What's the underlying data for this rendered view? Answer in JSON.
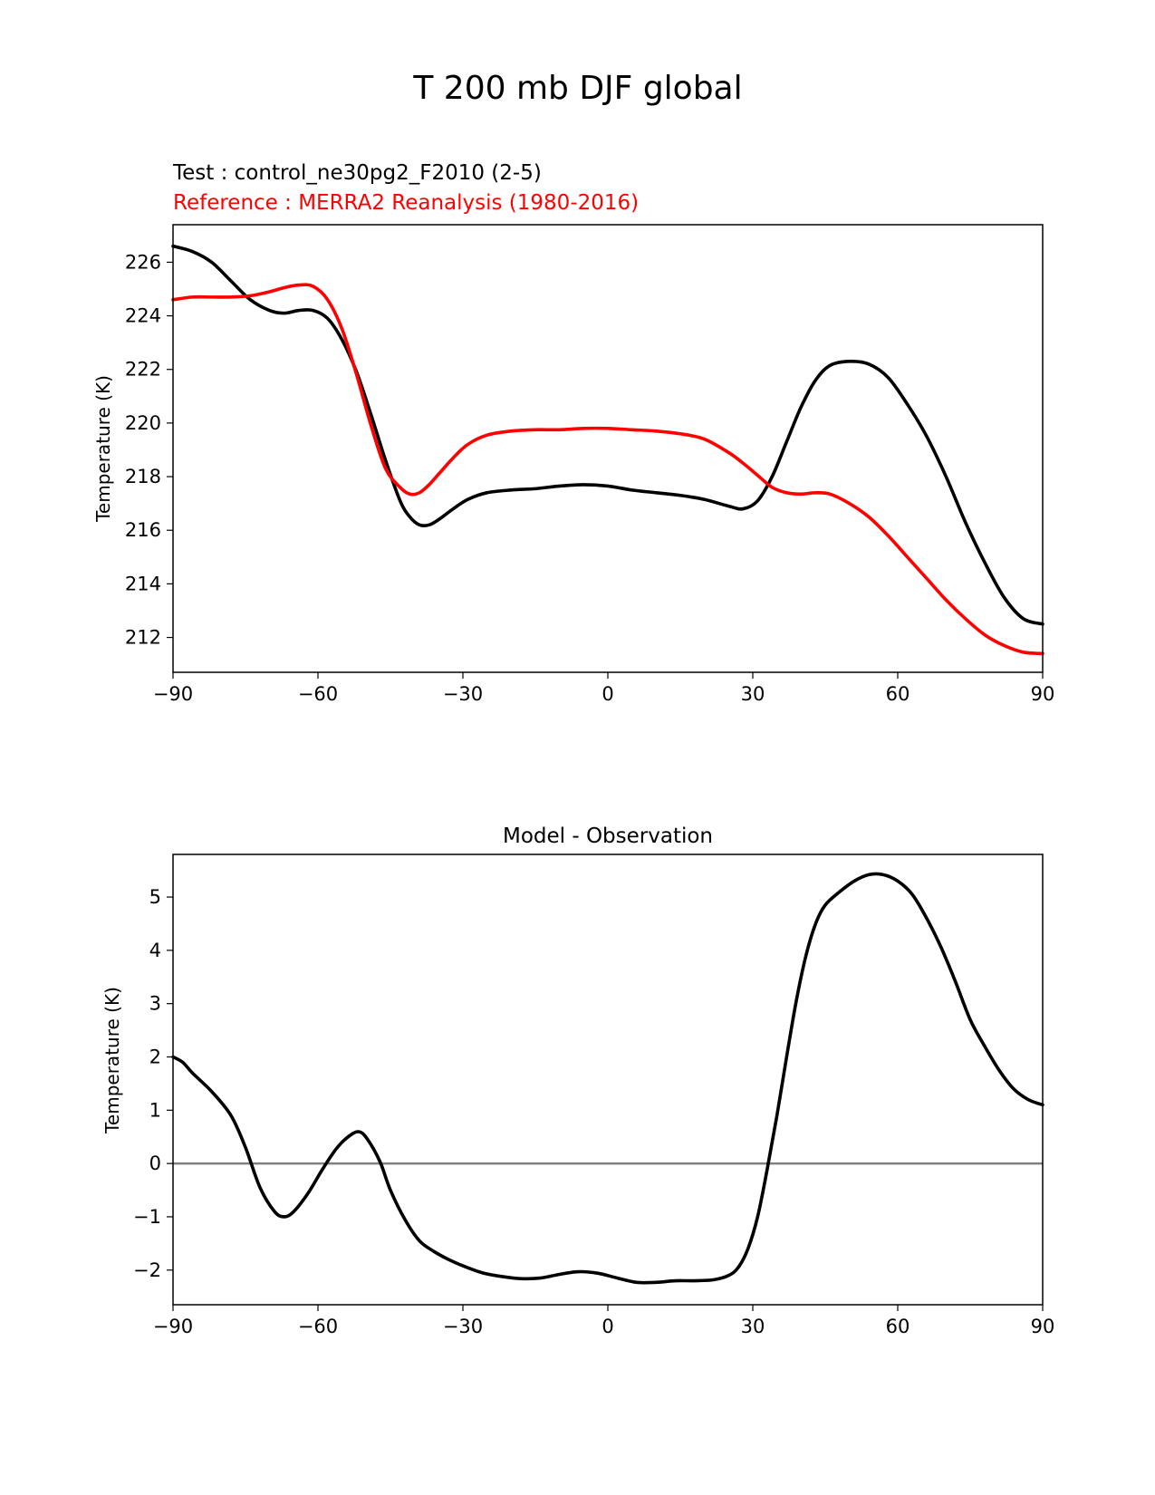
{
  "figure": {
    "suptitle": "T 200 mb DJF global"
  },
  "chart_data": [
    {
      "type": "line",
      "test_label": "Test : control_ne30pg2_F2010 (2-5)",
      "reference_label": "Reference : MERRA2 Reanalysis (1980-2016)",
      "title": "",
      "xlabel": "",
      "ylabel": "Temperature (K)",
      "xlim": [
        -90,
        90
      ],
      "ylim": [
        210.7,
        227.4
      ],
      "xticks": [
        -90,
        -60,
        -30,
        0,
        30,
        60,
        90
      ],
      "xtick_labels": [
        "−90",
        "−60",
        "−30",
        "0",
        "30",
        "60",
        "90"
      ],
      "yticks": [
        212,
        214,
        216,
        218,
        220,
        222,
        224,
        226
      ],
      "ytick_labels": [
        "212",
        "214",
        "216",
        "218",
        "220",
        "222",
        "224",
        "226"
      ],
      "series": [
        {
          "name": "Test",
          "color": "#000000",
          "x": [
            -90,
            -86,
            -82,
            -78,
            -74,
            -70,
            -67,
            -64,
            -61,
            -58,
            -55,
            -52,
            -49,
            -46,
            -43,
            -41,
            -39,
            -37,
            -35,
            -32,
            -29,
            -25,
            -20,
            -15,
            -10,
            -5,
            0,
            5,
            10,
            15,
            20,
            25,
            28,
            31,
            34,
            37,
            40,
            43,
            46,
            50,
            54,
            58,
            62,
            66,
            70,
            74,
            78,
            82,
            86,
            90
          ],
          "y": [
            226.6,
            226.4,
            226.0,
            225.3,
            224.6,
            224.2,
            224.1,
            224.2,
            224.2,
            223.9,
            223.1,
            221.9,
            220.3,
            218.6,
            217.1,
            216.5,
            216.2,
            216.2,
            216.4,
            216.8,
            217.15,
            217.4,
            217.5,
            217.55,
            217.65,
            217.7,
            217.65,
            217.5,
            217.4,
            217.3,
            217.15,
            216.9,
            216.8,
            217.1,
            218.0,
            219.3,
            220.6,
            221.6,
            222.15,
            222.3,
            222.2,
            221.7,
            220.7,
            219.5,
            218.0,
            216.3,
            214.8,
            213.5,
            212.7,
            212.5
          ]
        },
        {
          "name": "Reference",
          "color": "#ff0000",
          "x": [
            -90,
            -86,
            -82,
            -78,
            -74,
            -70,
            -67,
            -64,
            -61,
            -58,
            -55,
            -52,
            -49,
            -46,
            -43,
            -41,
            -39,
            -37,
            -35,
            -32,
            -29,
            -25,
            -20,
            -15,
            -10,
            -5,
            0,
            5,
            10,
            15,
            20,
            25,
            28,
            31,
            34,
            37,
            40,
            43,
            46,
            50,
            54,
            58,
            62,
            66,
            70,
            74,
            78,
            82,
            86,
            90
          ],
          "y": [
            224.6,
            224.7,
            224.7,
            224.7,
            224.75,
            224.9,
            225.05,
            225.15,
            225.1,
            224.6,
            223.5,
            221.8,
            219.9,
            218.3,
            217.6,
            217.35,
            217.4,
            217.7,
            218.1,
            218.7,
            219.2,
            219.55,
            219.7,
            219.75,
            219.75,
            219.8,
            219.8,
            219.75,
            219.7,
            219.6,
            219.4,
            218.9,
            218.5,
            218.05,
            217.6,
            217.4,
            217.35,
            217.4,
            217.35,
            217.0,
            216.5,
            215.8,
            215.0,
            214.2,
            213.4,
            212.7,
            212.1,
            211.7,
            211.45,
            211.4
          ]
        }
      ]
    },
    {
      "type": "line",
      "title": "Model - Observation",
      "xlabel": "",
      "ylabel": "Temperature (K)",
      "xlim": [
        -90,
        90
      ],
      "ylim": [
        -2.65,
        5.8
      ],
      "xticks": [
        -90,
        -60,
        -30,
        0,
        30,
        60,
        90
      ],
      "xtick_labels": [
        "−90",
        "−60",
        "−30",
        "0",
        "30",
        "60",
        "90"
      ],
      "yticks": [
        -2,
        -1,
        0,
        1,
        2,
        3,
        4,
        5
      ],
      "ytick_labels": [
        "−2",
        "−1",
        "0",
        "1",
        "2",
        "3",
        "4",
        "5"
      ],
      "zero_line": {
        "y": 0,
        "color": "#808080"
      },
      "series": [
        {
          "name": "Model - Observation",
          "color": "#000000",
          "x": [
            -90,
            -88,
            -86,
            -82,
            -78,
            -75,
            -72,
            -69,
            -67,
            -65,
            -62,
            -59,
            -56,
            -53,
            -51,
            -49,
            -47,
            -45,
            -42,
            -39,
            -36,
            -33,
            -30,
            -26,
            -22,
            -18,
            -14,
            -10,
            -6,
            -2,
            2,
            6,
            10,
            14,
            18,
            22,
            25,
            27,
            29,
            31,
            33,
            35,
            37,
            39,
            41,
            43,
            45,
            48,
            51,
            54,
            57,
            60,
            63,
            66,
            69,
            72,
            75,
            78,
            81,
            84,
            87,
            90
          ],
          "y": [
            2.0,
            1.9,
            1.7,
            1.35,
            0.9,
            0.3,
            -0.45,
            -0.9,
            -1.0,
            -0.9,
            -0.55,
            -0.1,
            0.3,
            0.55,
            0.58,
            0.35,
            0.0,
            -0.5,
            -1.05,
            -1.45,
            -1.65,
            -1.8,
            -1.92,
            -2.05,
            -2.12,
            -2.16,
            -2.15,
            -2.08,
            -2.03,
            -2.06,
            -2.15,
            -2.23,
            -2.23,
            -2.2,
            -2.2,
            -2.18,
            -2.1,
            -1.95,
            -1.6,
            -1.0,
            -0.1,
            0.9,
            2.0,
            3.05,
            3.9,
            4.5,
            4.85,
            5.1,
            5.3,
            5.42,
            5.42,
            5.3,
            5.05,
            4.6,
            4.05,
            3.4,
            2.7,
            2.2,
            1.75,
            1.4,
            1.2,
            1.1
          ]
        }
      ]
    }
  ]
}
